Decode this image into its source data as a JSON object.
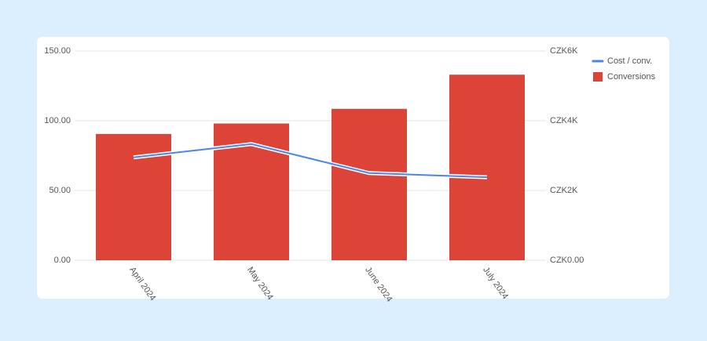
{
  "chart_data": {
    "type": "combo",
    "categories": [
      "April 2024",
      "May 2024",
      "June 2024",
      "July 2024"
    ],
    "series": [
      {
        "name": "Cost / conv.",
        "type": "line",
        "axis": "y2",
        "color": "#4a86e8",
        "values": [
          2950,
          3330,
          2500,
          2380
        ]
      },
      {
        "name": "Conversions",
        "type": "bar",
        "color": "#db4437",
        "values": [
          90.5,
          98,
          108.5,
          133
        ]
      }
    ],
    "ylim": [
      0,
      150
    ],
    "yticks": [
      {
        "value": 0,
        "label": "0.00"
      },
      {
        "value": 50,
        "label": "50.00"
      },
      {
        "value": 100,
        "label": "100.00"
      },
      {
        "value": 150,
        "label": "150.00"
      }
    ],
    "y2lim": [
      0,
      6000
    ],
    "y2ticks": [
      {
        "value": 0,
        "label": "CZK0.00"
      },
      {
        "value": 2000,
        "label": "CZK2K"
      },
      {
        "value": 4000,
        "label": "CZK4K"
      },
      {
        "value": 6000,
        "label": "CZK6K"
      }
    ],
    "grid": true,
    "legend": "right"
  }
}
